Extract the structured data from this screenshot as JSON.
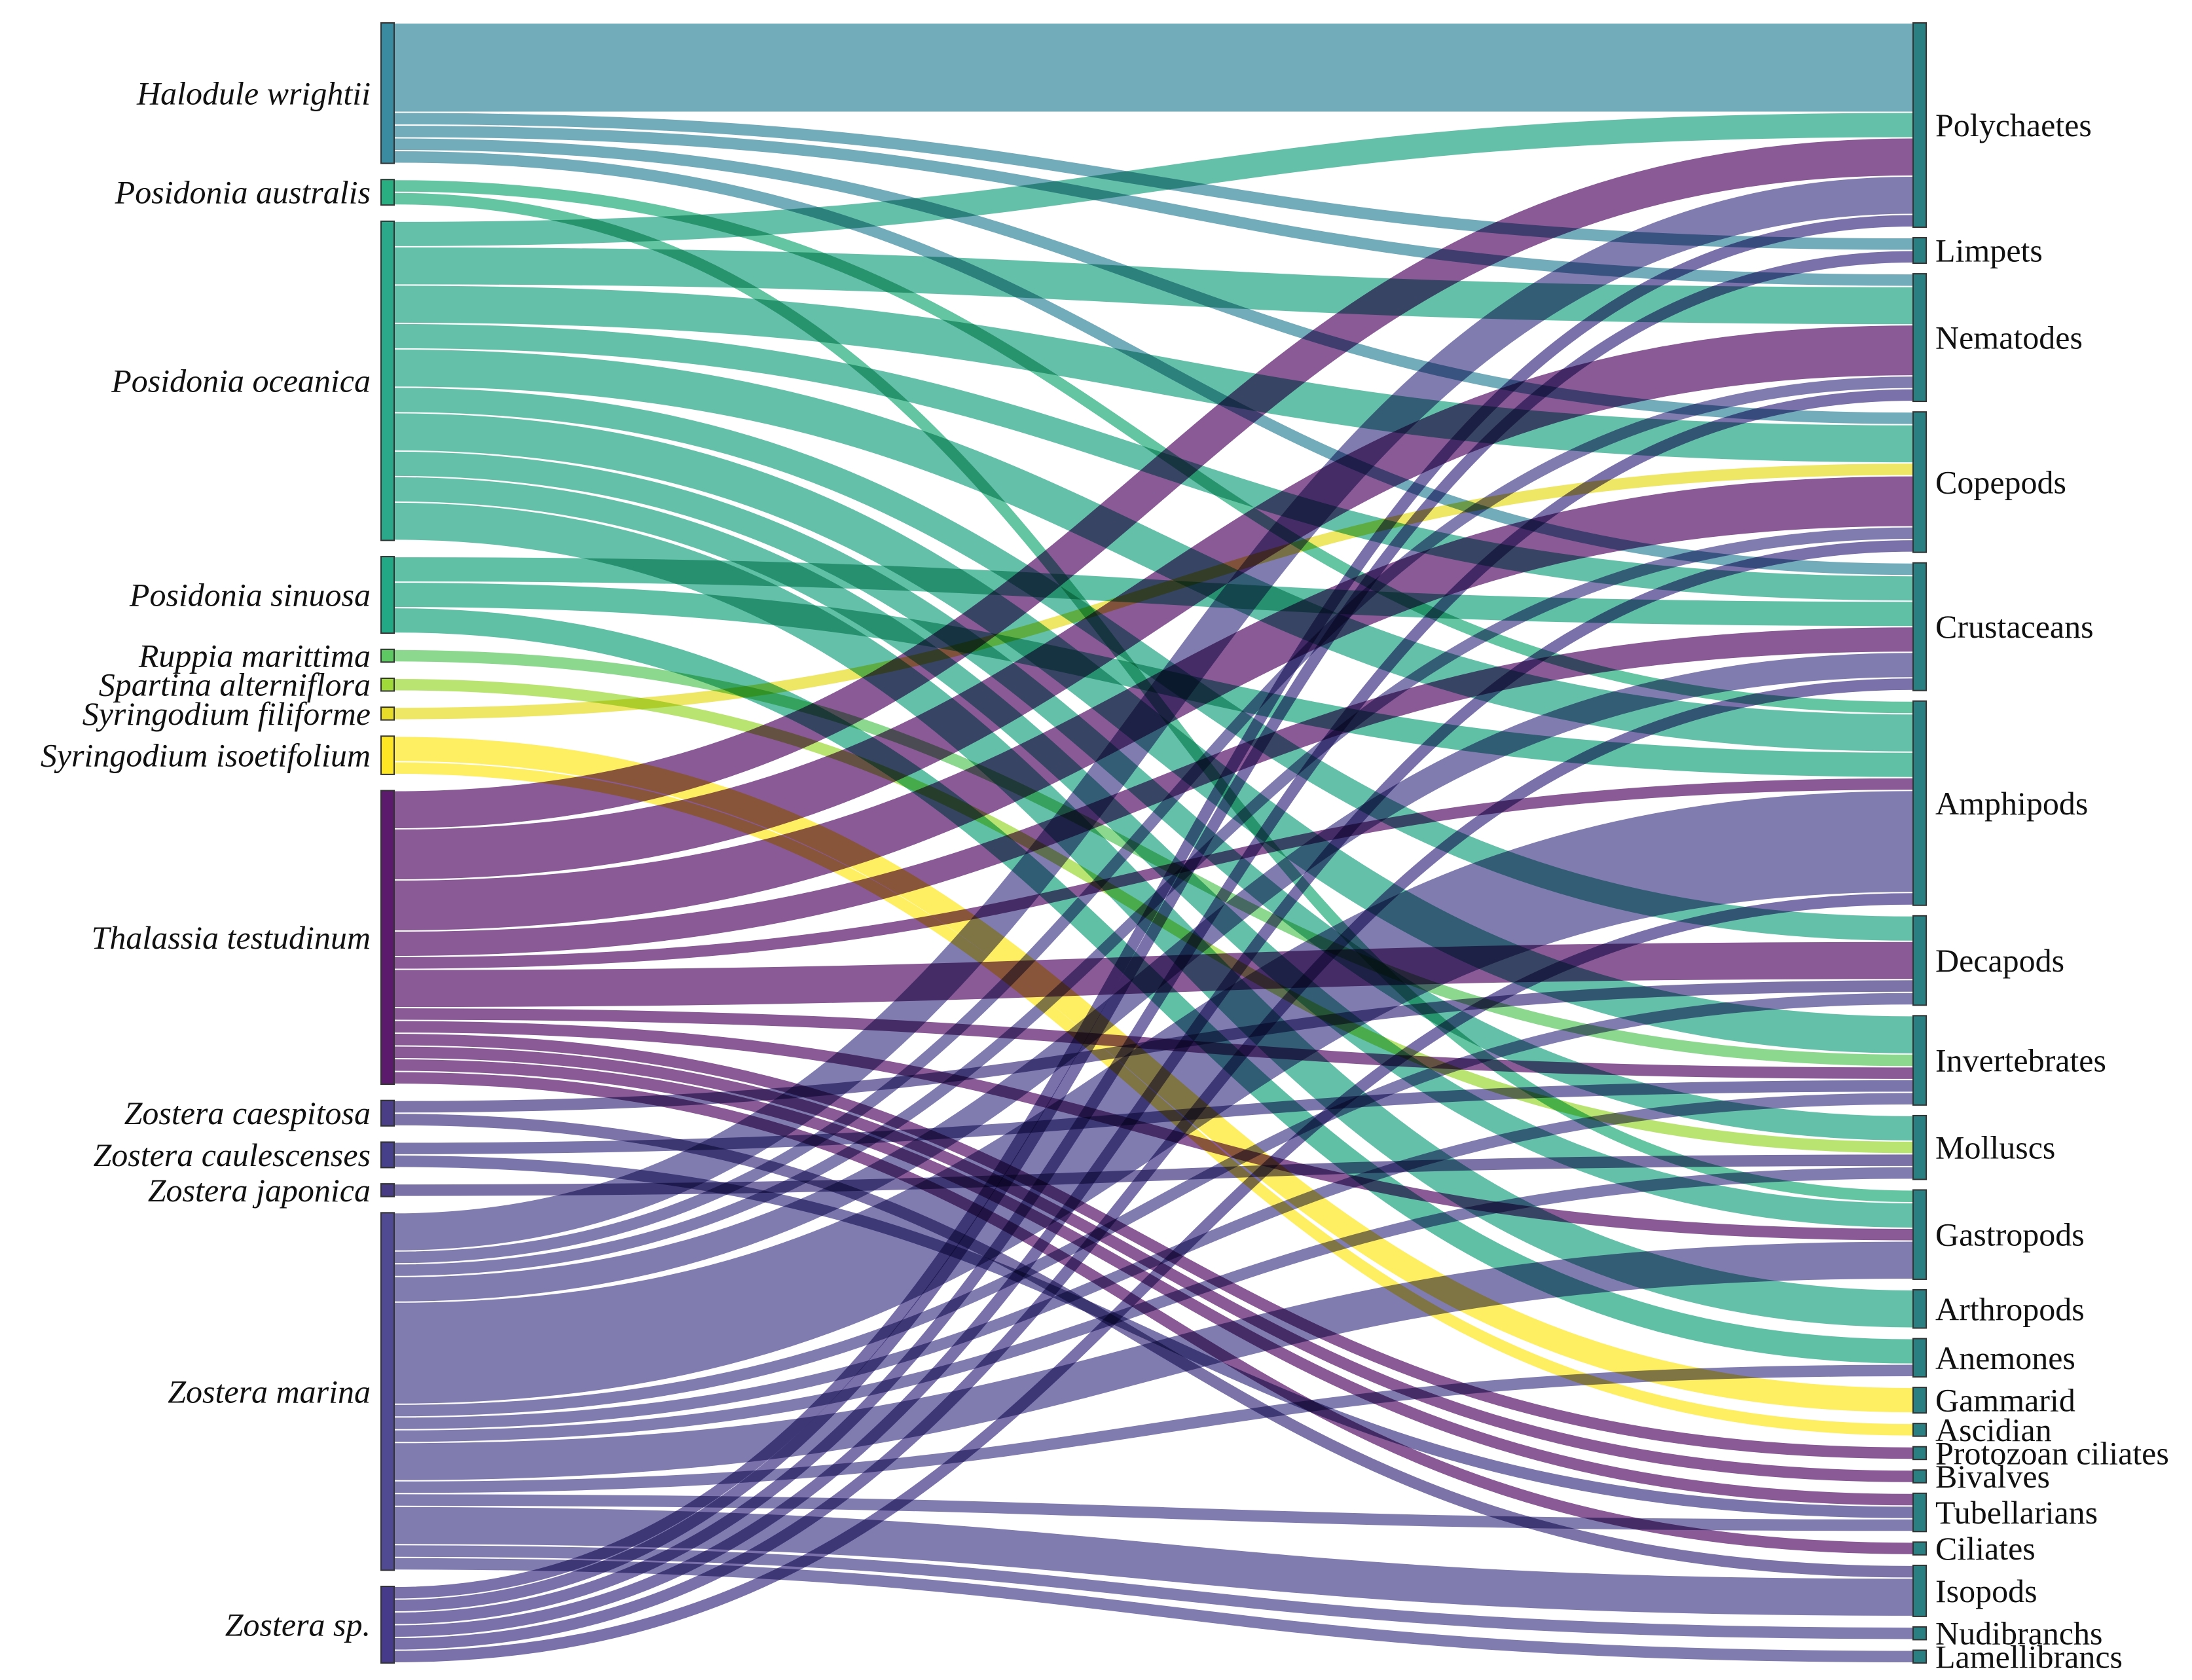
{
  "chart_data": {
    "type": "sankey",
    "title": "",
    "colors": {
      "Halodule wrightii": "#3b8ba0",
      "Posidonia australis": "#28ae80",
      "Posidonia oceanica": "#2aa889",
      "Posidonia sinuosa": "#22a884",
      "Ruppia marittima": "#5ec962",
      "Spartina alterniflora": "#9fda3a",
      "Syringodium filiforme": "#e8dc2a",
      "Syringodium isoetifolium": "#fde725",
      "Thalassia testudinum": "#5c1a6c",
      "Zostera caespitosa": "#4a3f86",
      "Zostera caulescenses": "#46408a",
      "Zostera japonica": "#473b84",
      "Zostera marina": "#4f4a92",
      "Zostera sp.": "#463a8a",
      "target_node": "#2a7f82"
    },
    "sources": [
      "Halodule wrightii",
      "Posidonia australis",
      "Posidonia oceanica",
      "Posidonia sinuosa",
      "Ruppia marittima",
      "Spartina alterniflora",
      "Syringodium filiforme",
      "Syringodium isoetifolium",
      "Thalassia testudinum",
      "Zostera caespitosa",
      "Zostera caulescenses",
      "Zostera japonica",
      "Zostera marina",
      "Zostera sp."
    ],
    "targets": [
      "Polychaetes",
      "Limpets",
      "Nematodes",
      "Copepods",
      "Crustaceans",
      "Amphipods",
      "Decapods",
      "Invertebrates",
      "Molluscs",
      "Gastropods",
      "Arthropods",
      "Anemones",
      "Gammarid",
      "Ascidian",
      "Protozoan ciliates",
      "Bivalves",
      "Tubellarians",
      "Ciliates",
      "Isopods",
      "Nudibranchs",
      "Lamellibrancs"
    ],
    "flows": [
      {
        "source": "Halodule wrightii",
        "target": "Polychaetes",
        "value": 7
      },
      {
        "source": "Halodule wrightii",
        "target": "Limpets",
        "value": 1
      },
      {
        "source": "Halodule wrightii",
        "target": "Nematodes",
        "value": 1
      },
      {
        "source": "Halodule wrightii",
        "target": "Crustaceans",
        "value": 1
      },
      {
        "source": "Halodule wrightii",
        "target": "Copepods",
        "value": 1
      },
      {
        "source": "Posidonia australis",
        "target": "Amphipods",
        "value": 1
      },
      {
        "source": "Posidonia australis",
        "target": "Gastropods",
        "value": 1
      },
      {
        "source": "Posidonia oceanica",
        "target": "Polychaetes",
        "value": 2
      },
      {
        "source": "Posidonia oceanica",
        "target": "Nematodes",
        "value": 3
      },
      {
        "source": "Posidonia oceanica",
        "target": "Copepods",
        "value": 3
      },
      {
        "source": "Posidonia oceanica",
        "target": "Crustaceans",
        "value": 2
      },
      {
        "source": "Posidonia oceanica",
        "target": "Amphipods",
        "value": 3
      },
      {
        "source": "Posidonia oceanica",
        "target": "Decapods",
        "value": 2
      },
      {
        "source": "Posidonia oceanica",
        "target": "Invertebrates",
        "value": 3
      },
      {
        "source": "Posidonia oceanica",
        "target": "Molluscs",
        "value": 2
      },
      {
        "source": "Posidonia oceanica",
        "target": "Gastropods",
        "value": 2
      },
      {
        "source": "Posidonia oceanica",
        "target": "Arthropods",
        "value": 3
      },
      {
        "source": "Posidonia sinuosa",
        "target": "Crustaceans",
        "value": 2
      },
      {
        "source": "Posidonia sinuosa",
        "target": "Amphipods",
        "value": 2
      },
      {
        "source": "Posidonia sinuosa",
        "target": "Anemones",
        "value": 2
      },
      {
        "source": "Ruppia marittima",
        "target": "Invertebrates",
        "value": 1
      },
      {
        "source": "Spartina alterniflora",
        "target": "Molluscs",
        "value": 1
      },
      {
        "source": "Syringodium filiforme",
        "target": "Copepods",
        "value": 1
      },
      {
        "source": "Syringodium isoetifolium",
        "target": "Gammarid",
        "value": 2
      },
      {
        "source": "Syringodium isoetifolium",
        "target": "Ascidian",
        "value": 1
      },
      {
        "source": "Thalassia testudinum",
        "target": "Polychaetes",
        "value": 3
      },
      {
        "source": "Thalassia testudinum",
        "target": "Nematodes",
        "value": 4
      },
      {
        "source": "Thalassia testudinum",
        "target": "Copepods",
        "value": 4
      },
      {
        "source": "Thalassia testudinum",
        "target": "Crustaceans",
        "value": 2
      },
      {
        "source": "Thalassia testudinum",
        "target": "Amphipods",
        "value": 1
      },
      {
        "source": "Thalassia testudinum",
        "target": "Decapods",
        "value": 3
      },
      {
        "source": "Thalassia testudinum",
        "target": "Invertebrates",
        "value": 1
      },
      {
        "source": "Thalassia testudinum",
        "target": "Gastropods",
        "value": 1
      },
      {
        "source": "Thalassia testudinum",
        "target": "Protozoan ciliates",
        "value": 1
      },
      {
        "source": "Thalassia testudinum",
        "target": "Bivalves",
        "value": 1
      },
      {
        "source": "Thalassia testudinum",
        "target": "Tubellarians",
        "value": 1
      },
      {
        "source": "Thalassia testudinum",
        "target": "Ciliates",
        "value": 1
      },
      {
        "source": "Zostera caespitosa",
        "target": "Decapods",
        "value": 1
      },
      {
        "source": "Zostera caespitosa",
        "target": "Isopods",
        "value": 1
      },
      {
        "source": "Zostera caulescenses",
        "target": "Invertebrates",
        "value": 1
      },
      {
        "source": "Zostera caulescenses",
        "target": "Tubellarians",
        "value": 1
      },
      {
        "source": "Zostera japonica",
        "target": "Molluscs",
        "value": 1
      },
      {
        "source": "Zostera marina",
        "target": "Polychaetes",
        "value": 3
      },
      {
        "source": "Zostera marina",
        "target": "Nematodes",
        "value": 1
      },
      {
        "source": "Zostera marina",
        "target": "Copepods",
        "value": 1
      },
      {
        "source": "Zostera marina",
        "target": "Crustaceans",
        "value": 2
      },
      {
        "source": "Zostera marina",
        "target": "Amphipods",
        "value": 8
      },
      {
        "source": "Zostera marina",
        "target": "Decapods",
        "value": 1
      },
      {
        "source": "Zostera marina",
        "target": "Invertebrates",
        "value": 1
      },
      {
        "source": "Zostera marina",
        "target": "Molluscs",
        "value": 1
      },
      {
        "source": "Zostera marina",
        "target": "Gastropods",
        "value": 3
      },
      {
        "source": "Zostera marina",
        "target": "Anemones",
        "value": 1
      },
      {
        "source": "Zostera marina",
        "target": "Tubellarians",
        "value": 1
      },
      {
        "source": "Zostera marina",
        "target": "Isopods",
        "value": 3
      },
      {
        "source": "Zostera marina",
        "target": "Nudibranchs",
        "value": 1
      },
      {
        "source": "Zostera marina",
        "target": "Lamellibrancs",
        "value": 1
      },
      {
        "source": "Zostera sp.",
        "target": "Polychaetes",
        "value": 1
      },
      {
        "source": "Zostera sp.",
        "target": "Nematodes",
        "value": 1
      },
      {
        "source": "Zostera sp.",
        "target": "Copepods",
        "value": 1
      },
      {
        "source": "Zostera sp.",
        "target": "Crustaceans",
        "value": 1
      },
      {
        "source": "Zostera sp.",
        "target": "Amphipods",
        "value": 1
      },
      {
        "source": "Zostera sp.",
        "target": "Limpets",
        "value": 1
      }
    ]
  }
}
